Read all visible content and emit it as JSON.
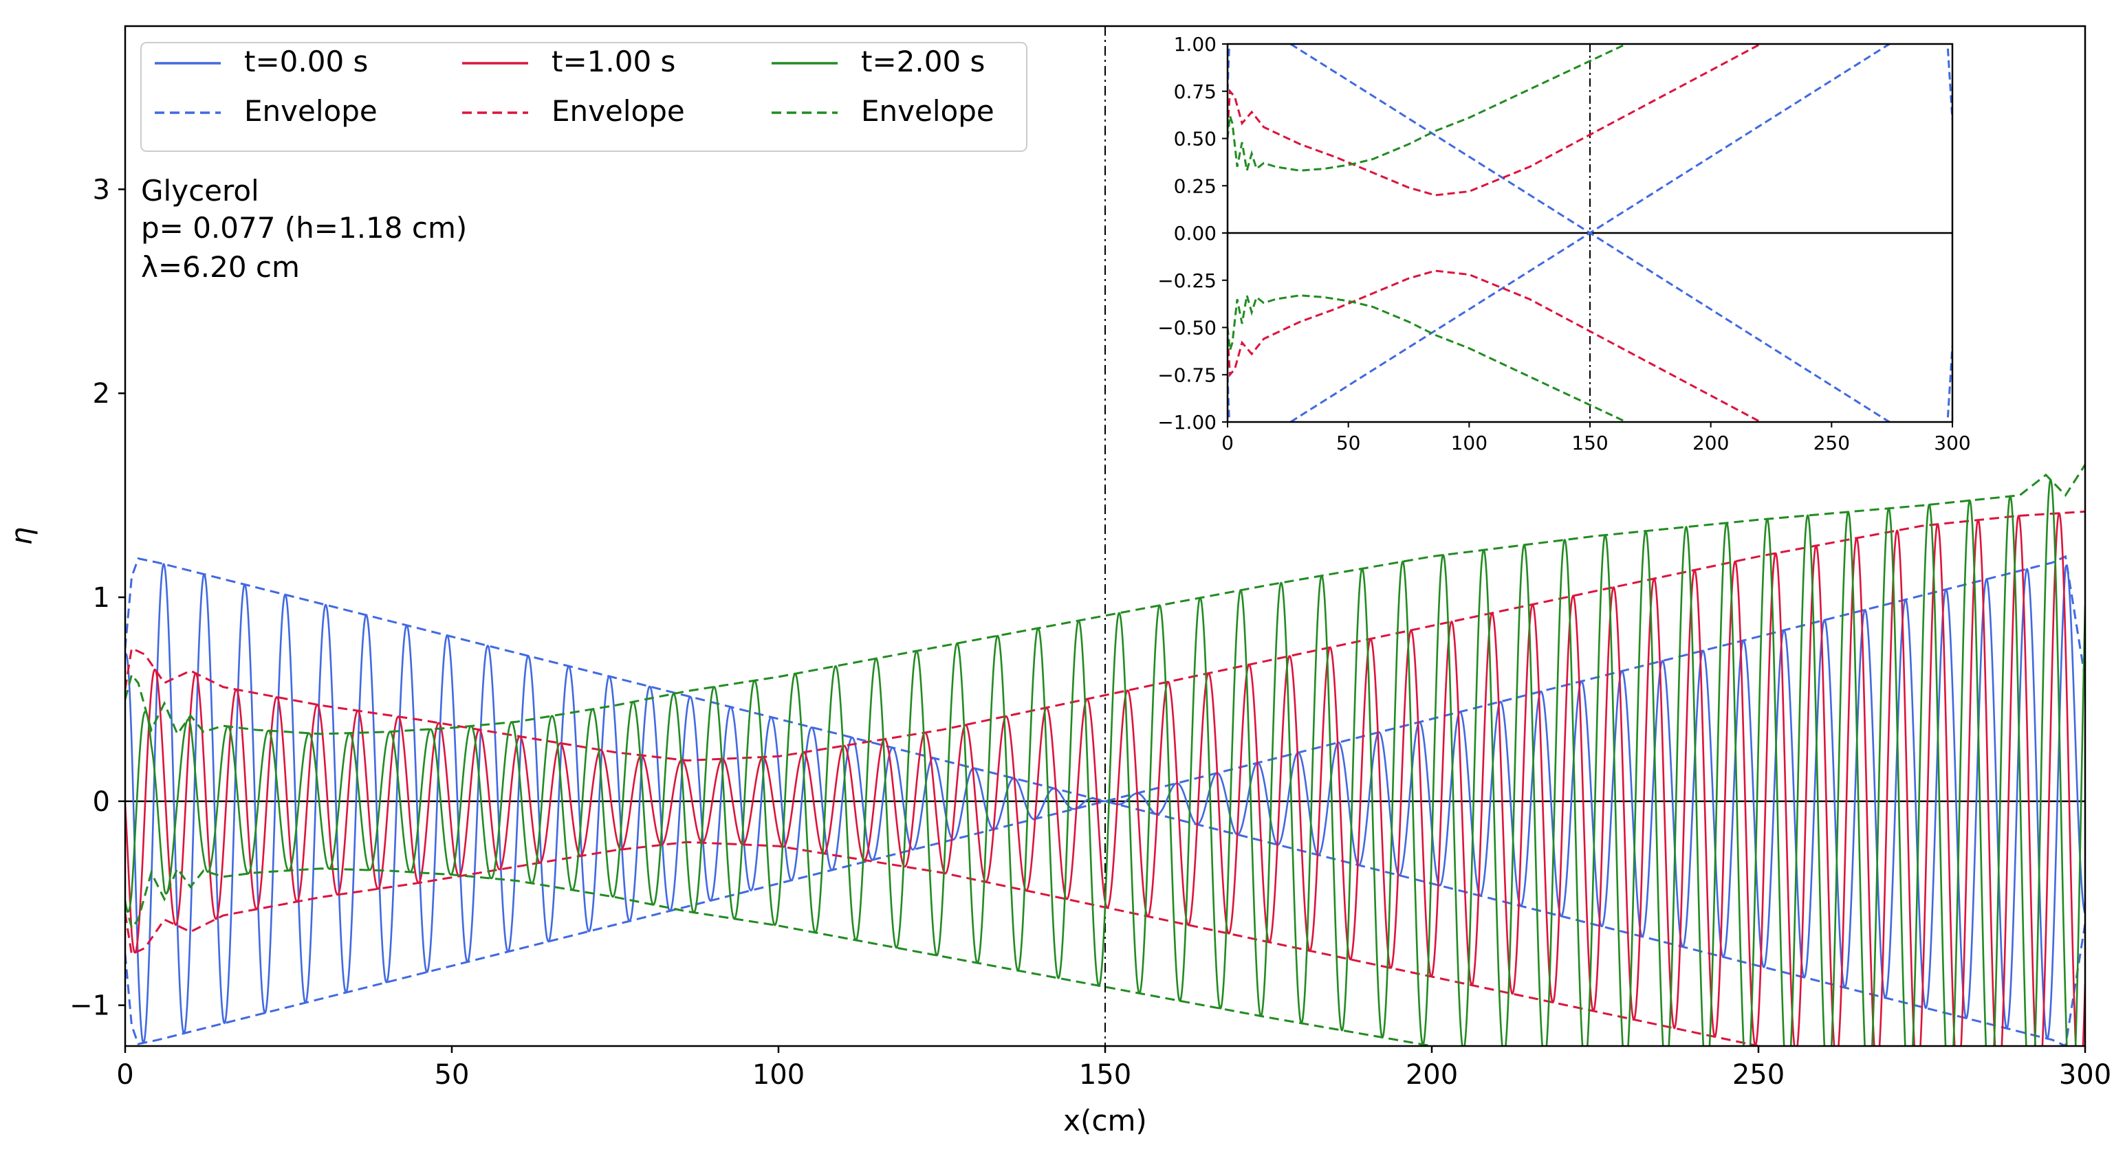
{
  "chart_data": [
    {
      "id": "main",
      "type": "line",
      "title": "",
      "xlabel": "x(cm)",
      "ylabel": "η",
      "xlim": [
        0,
        300
      ],
      "ylim": [
        -1.2,
        3.8
      ],
      "xticks": [
        0,
        50,
        100,
        150,
        200,
        250,
        300
      ],
      "xtick_labels": [
        "0",
        "50",
        "100",
        "150",
        "200",
        "250",
        "300"
      ],
      "yticks": [
        -1,
        0,
        1,
        2,
        3
      ],
      "ytick_labels": [
        "−1",
        "0",
        "1",
        "2",
        "3"
      ],
      "vline_x": 150,
      "hline_y": 0,
      "annotation_lines": [
        "Glycerol",
        "p= 0.077 (h=1.18 cm)",
        "λ=6.20 cm"
      ],
      "legend": {
        "placement": "top-left",
        "entries": [
          {
            "label": "t=0.00 s",
            "style": "solid",
            "color": "#4169e1"
          },
          {
            "label": "t=1.00 s",
            "style": "solid",
            "color": "#dc143c"
          },
          {
            "label": "t=2.00 s",
            "style": "solid",
            "color": "#228b22"
          },
          {
            "label": "Envelope",
            "style": "dashed",
            "color": "#4169e1"
          },
          {
            "label": "Envelope",
            "style": "dashed",
            "color": "#dc143c"
          },
          {
            "label": "Envelope",
            "style": "dashed",
            "color": "#228b22"
          }
        ]
      },
      "wavelength_cm": 6.2,
      "series": [
        {
          "name": "t=0.00 s",
          "color": "#4169e1",
          "envelope_x": [
            0,
            1,
            2,
            5,
            150,
            295,
            297,
            300
          ],
          "envelope_y": [
            0.75,
            1.1,
            1.19,
            1.17,
            0.0,
            1.17,
            1.2,
            0.6
          ]
        },
        {
          "name": "t=1.00 s",
          "color": "#dc143c",
          "envelope_x": [
            0,
            1,
            3,
            6,
            10,
            15,
            20,
            30,
            45,
            60,
            75,
            86,
            100,
            125,
            150,
            175,
            200,
            225,
            250,
            275,
            290,
            300
          ],
          "envelope_y": [
            0.55,
            0.75,
            0.72,
            0.58,
            0.64,
            0.56,
            0.53,
            0.47,
            0.4,
            0.32,
            0.24,
            0.2,
            0.22,
            0.35,
            0.52,
            0.69,
            0.86,
            1.03,
            1.2,
            1.35,
            1.4,
            1.42
          ]
        },
        {
          "name": "t=2.00 s",
          "color": "#228b22",
          "envelope_x": [
            0,
            1,
            2,
            4,
            6,
            8,
            10,
            12,
            15,
            20,
            30,
            40,
            50,
            60,
            75,
            86,
            100,
            125,
            150,
            175,
            200,
            225,
            250,
            275,
            290,
            294,
            297,
            300
          ],
          "envelope_y": [
            0.5,
            0.62,
            0.58,
            0.35,
            0.48,
            0.33,
            0.42,
            0.34,
            0.37,
            0.35,
            0.33,
            0.34,
            0.36,
            0.39,
            0.47,
            0.54,
            0.61,
            0.76,
            0.91,
            1.06,
            1.2,
            1.3,
            1.38,
            1.45,
            1.5,
            1.6,
            1.5,
            1.65
          ]
        }
      ]
    },
    {
      "id": "inset",
      "type": "line",
      "title": "",
      "xlabel": "",
      "ylabel": "",
      "xlim": [
        0,
        300
      ],
      "ylim": [
        -1,
        1
      ],
      "xticks": [
        0,
        50,
        100,
        150,
        200,
        250,
        300
      ],
      "xtick_labels": [
        "0",
        "50",
        "100",
        "150",
        "200",
        "250",
        "300"
      ],
      "yticks": [
        -1,
        -0.75,
        -0.5,
        -0.25,
        0,
        0.25,
        0.5,
        0.75,
        1
      ],
      "ytick_labels": [
        "−1.00",
        "−0.75",
        "−0.50",
        "−0.25",
        "0.00",
        "0.25",
        "0.50",
        "0.75",
        "1.00"
      ],
      "vline_x": 150,
      "hline_y": 0,
      "note": "zoom of the envelopes"
    }
  ]
}
